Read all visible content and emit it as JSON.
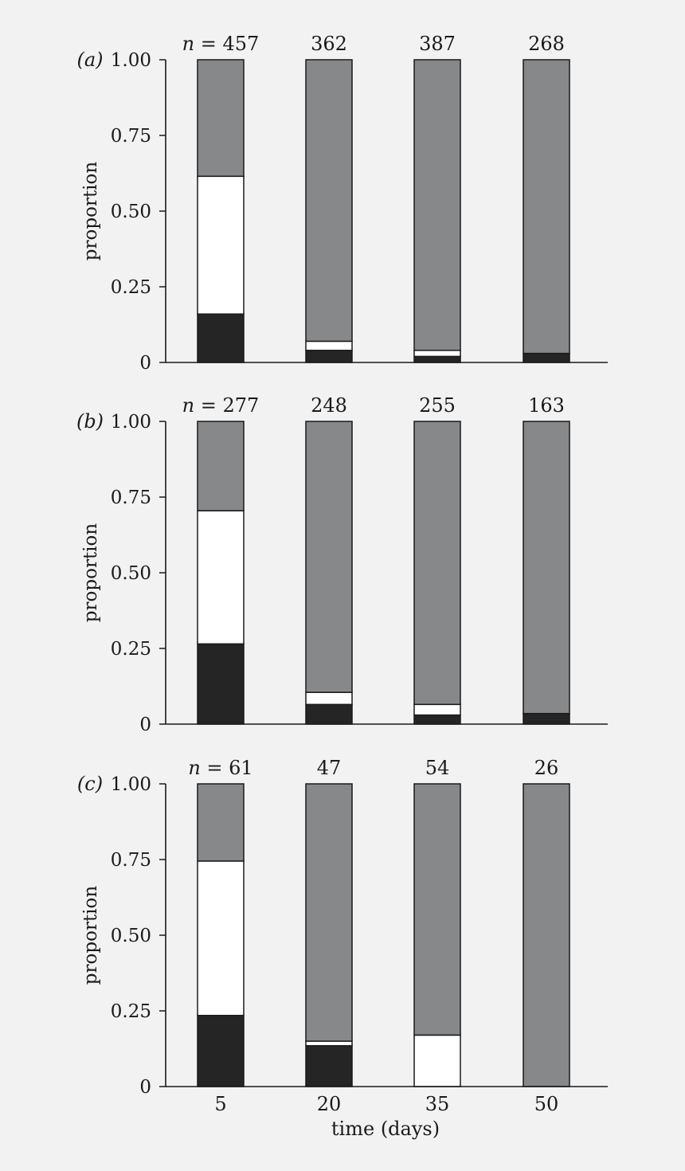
{
  "chart_data": [
    {
      "type": "bar",
      "stacked": true,
      "panel_label": "(a)",
      "categories": [
        "5",
        "20",
        "35",
        "50"
      ],
      "n_prefix": "n = ",
      "n_values": [
        "457",
        "362",
        "387",
        "268"
      ],
      "ylabel": "proportion",
      "ylim": [
        0,
        1
      ],
      "yticks": [
        "0",
        "0.25",
        "0.50",
        "0.75",
        "1.00"
      ],
      "ytick_values": [
        0,
        0.25,
        0.5,
        0.75,
        1.0
      ],
      "series": [
        {
          "color": "#252525",
          "values": [
            0.16,
            0.04,
            0.02,
            0.03
          ]
        },
        {
          "color": "#ffffff",
          "values": [
            0.455,
            0.03,
            0.02,
            0.0
          ]
        },
        {
          "color": "#87888a",
          "values": [
            0.385,
            0.93,
            0.96,
            0.97
          ]
        }
      ]
    },
    {
      "type": "bar",
      "stacked": true,
      "panel_label": "(b)",
      "categories": [
        "5",
        "20",
        "35",
        "50"
      ],
      "n_prefix": "n = ",
      "n_values": [
        "277",
        "248",
        "255",
        "163"
      ],
      "ylabel": "proportion",
      "ylim": [
        0,
        1
      ],
      "yticks": [
        "0",
        "0.25",
        "0.50",
        "0.75",
        "1.00"
      ],
      "ytick_values": [
        0,
        0.25,
        0.5,
        0.75,
        1.0
      ],
      "series": [
        {
          "color": "#252525",
          "values": [
            0.265,
            0.065,
            0.03,
            0.035
          ]
        },
        {
          "color": "#ffffff",
          "values": [
            0.44,
            0.04,
            0.035,
            0.0
          ]
        },
        {
          "color": "#87888a",
          "values": [
            0.295,
            0.895,
            0.935,
            0.965
          ]
        }
      ]
    },
    {
      "type": "bar",
      "stacked": true,
      "panel_label": "(c)",
      "categories": [
        "5",
        "20",
        "35",
        "50"
      ],
      "n_prefix": "n = ",
      "n_values": [
        "61",
        "47",
        "54",
        "26"
      ],
      "ylabel": "proportion",
      "xlabel": "time (days)",
      "ylim": [
        0,
        1
      ],
      "yticks": [
        "0",
        "0.25",
        "0.50",
        "0.75",
        "1.00"
      ],
      "ytick_values": [
        0,
        0.25,
        0.5,
        0.75,
        1.0
      ],
      "series": [
        {
          "color": "#252525",
          "values": [
            0.235,
            0.135,
            0.0,
            0.0
          ]
        },
        {
          "color": "#ffffff",
          "values": [
            0.51,
            0.015,
            0.17,
            0.0
          ]
        },
        {
          "color": "#87888a",
          "values": [
            0.255,
            0.85,
            0.83,
            1.0
          ]
        }
      ]
    }
  ]
}
